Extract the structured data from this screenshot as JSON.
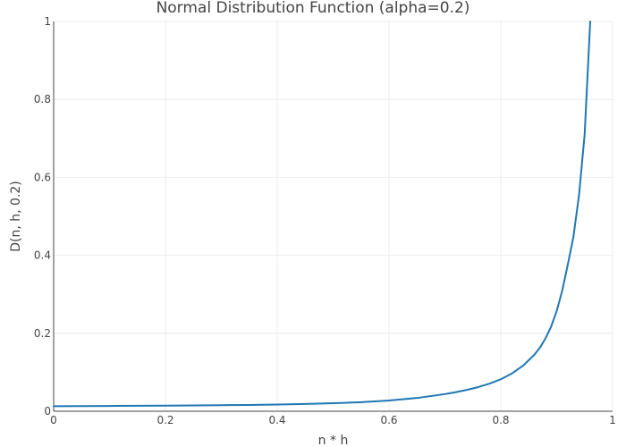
{
  "chart_data": {
    "type": "line",
    "title": "Normal Distribution Function (alpha=0.2)",
    "xlabel": "n * h",
    "ylabel": "D(n, h, 0.2)",
    "xlim": [
      0,
      1
    ],
    "ylim": [
      0,
      1
    ],
    "grid": true,
    "legend": "none",
    "line_color": "#1f77b4",
    "x_ticks": [
      {
        "value": 0,
        "label": "0"
      },
      {
        "value": 0.2,
        "label": "0.2"
      },
      {
        "value": 0.4,
        "label": "0.4"
      },
      {
        "value": 0.6,
        "label": "0.6"
      },
      {
        "value": 0.8,
        "label": "0.8"
      },
      {
        "value": 1,
        "label": "1"
      }
    ],
    "y_ticks": [
      {
        "value": 0,
        "label": "0"
      },
      {
        "value": 0.2,
        "label": "0.2"
      },
      {
        "value": 0.4,
        "label": "0.4"
      },
      {
        "value": 0.6,
        "label": "0.6"
      },
      {
        "value": 0.8,
        "label": "0.8"
      },
      {
        "value": 1,
        "label": "1"
      }
    ],
    "series": [
      {
        "name": "D(n, h, 0.2)",
        "x": [
          0,
          0.05,
          0.1,
          0.15,
          0.2,
          0.25,
          0.3,
          0.35,
          0.4,
          0.45,
          0.5,
          0.55,
          0.6,
          0.65,
          0.7,
          0.72,
          0.74,
          0.76,
          0.78,
          0.8,
          0.82,
          0.84,
          0.86,
          0.87,
          0.88,
          0.89,
          0.9,
          0.91,
          0.92,
          0.93,
          0.94,
          0.95,
          0.96
        ],
        "values": [
          0.013,
          0.0133,
          0.0136,
          0.014,
          0.0144,
          0.0149,
          0.0155,
          0.0162,
          0.0172,
          0.0185,
          0.0205,
          0.0232,
          0.0275,
          0.034,
          0.044,
          0.049,
          0.055,
          0.062,
          0.071,
          0.082,
          0.097,
          0.117,
          0.145,
          0.163,
          0.187,
          0.217,
          0.257,
          0.31,
          0.377,
          0.448,
          0.555,
          0.71,
          1.0
        ]
      }
    ]
  }
}
